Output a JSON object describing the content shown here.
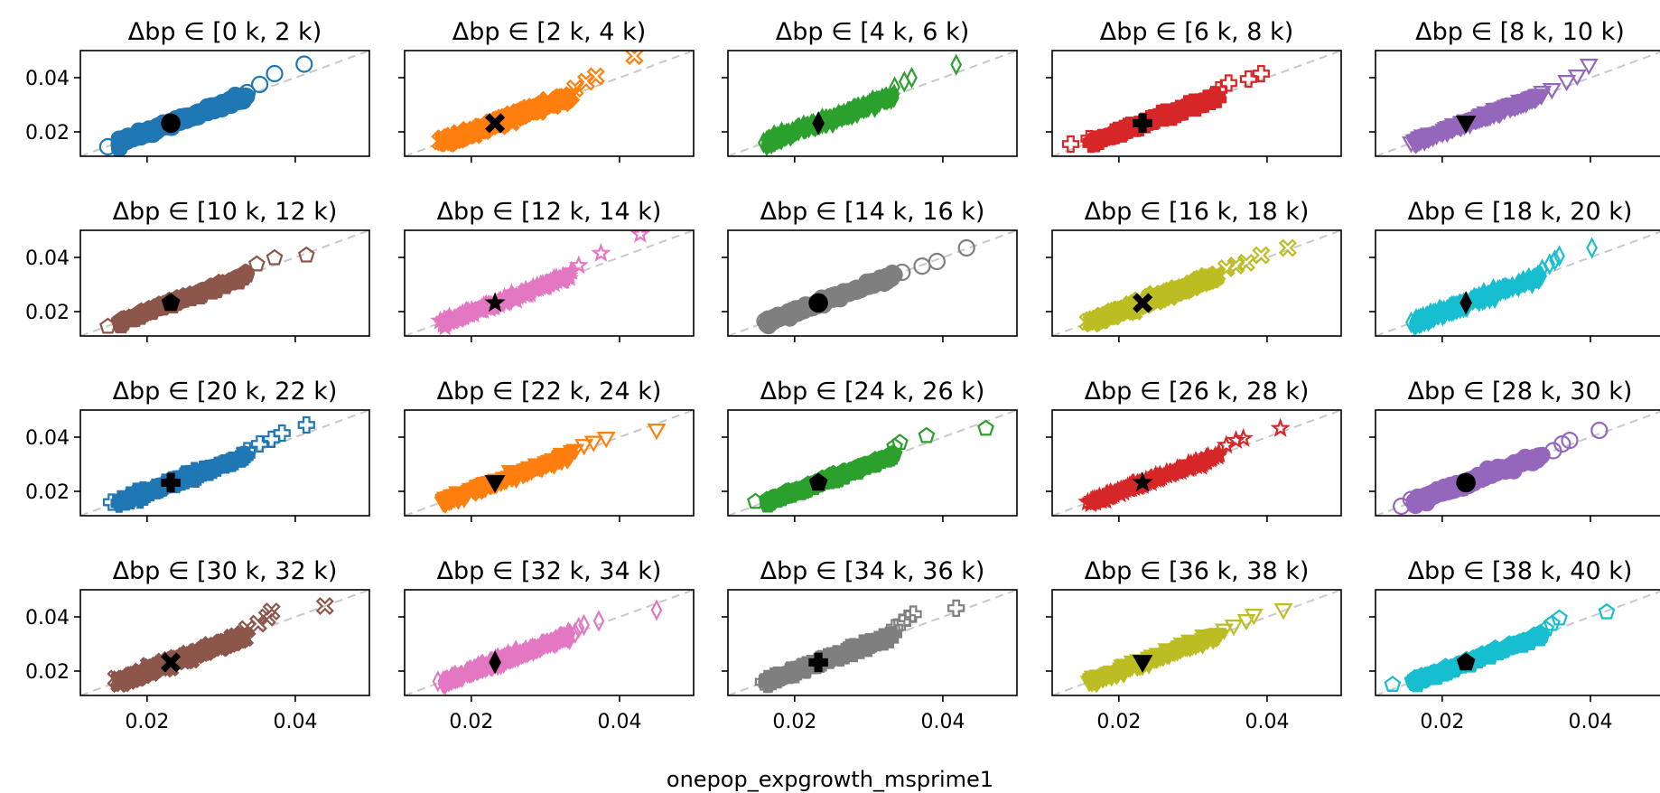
{
  "figure": {
    "xlabel": "onepop_expgrowth_msprime1"
  },
  "chart_data": {
    "type": "scatter",
    "layout": {
      "rows": 4,
      "cols": 5
    },
    "xlim": [
      0.011,
      0.05
    ],
    "ylim": [
      0.011,
      0.05
    ],
    "xticks": [
      0.02,
      0.04
    ],
    "yticks": [
      0.02,
      0.04
    ],
    "tick_labels": [
      "0.02",
      "0.04"
    ],
    "reference_line": {
      "style": "dashed",
      "color": "#c8c8c8",
      "slope": 1
    },
    "highlight_point": {
      "x": 0.0232,
      "y": 0.0232,
      "color": "#000000"
    },
    "panels": [
      {
        "title": "Δbp ∈ [0 k, 2 k)",
        "color": "#1f77b4",
        "marker": "circle",
        "outliers": [
          [
            0.0147,
            0.0145
          ],
          [
            0.0335,
            0.0345
          ],
          [
            0.0352,
            0.0375
          ],
          [
            0.0372,
            0.0415
          ],
          [
            0.0412,
            0.045
          ]
        ]
      },
      {
        "title": "Δbp ∈ [2 k, 4 k)",
        "color": "#ff7f0e",
        "marker": "x",
        "outliers": [
          [
            0.0158,
            0.0165
          ],
          [
            0.034,
            0.036
          ],
          [
            0.0355,
            0.0385
          ],
          [
            0.0368,
            0.0405
          ],
          [
            0.042,
            0.048
          ]
        ]
      },
      {
        "title": "Δbp ∈ [4 k, 6 k)",
        "color": "#2ca02c",
        "marker": "thin_diamond",
        "outliers": [
          [
            0.0158,
            0.016
          ],
          [
            0.0335,
            0.0365
          ],
          [
            0.0348,
            0.0385
          ],
          [
            0.0358,
            0.04
          ],
          [
            0.0418,
            0.0448
          ]
        ]
      },
      {
        "title": "Δbp ∈ [6 k, 8 k)",
        "color": "#d62728",
        "marker": "plus",
        "outliers": [
          [
            0.0135,
            0.0155
          ],
          [
            0.016,
            0.0175
          ],
          [
            0.0335,
            0.0355
          ],
          [
            0.0348,
            0.038
          ],
          [
            0.0375,
            0.0395
          ],
          [
            0.0392,
            0.0415
          ]
        ]
      },
      {
        "title": "Δbp ∈ [8 k, 10 k)",
        "color": "#9467bd",
        "marker": "triangle_down",
        "outliers": [
          [
            0.0158,
            0.0158
          ],
          [
            0.0335,
            0.0345
          ],
          [
            0.0348,
            0.0355
          ],
          [
            0.0368,
            0.0385
          ],
          [
            0.0382,
            0.0405
          ],
          [
            0.0398,
            0.0445
          ]
        ]
      },
      {
        "title": "Δbp ∈ [10 k, 12 k)",
        "color": "#8c564b",
        "marker": "pentagon",
        "outliers": [
          [
            0.0147,
            0.0145
          ],
          [
            0.0332,
            0.0345
          ],
          [
            0.0348,
            0.0375
          ],
          [
            0.0372,
            0.0398
          ],
          [
            0.0415,
            0.0408
          ]
        ]
      },
      {
        "title": "Δbp ∈ [12 k, 14 k)",
        "color": "#e377c2",
        "marker": "star",
        "outliers": [
          [
            0.0158,
            0.0165
          ],
          [
            0.0335,
            0.035
          ],
          [
            0.0345,
            0.037
          ],
          [
            0.0375,
            0.0415
          ],
          [
            0.0428,
            0.0485
          ]
        ]
      },
      {
        "title": "Δbp ∈ [14 k, 16 k)",
        "color": "#7f7f7f",
        "marker": "circle",
        "outliers": [
          [
            0.016,
            0.0165
          ],
          [
            0.0325,
            0.033
          ],
          [
            0.0345,
            0.0345
          ],
          [
            0.0372,
            0.0368
          ],
          [
            0.0392,
            0.0385
          ],
          [
            0.0432,
            0.0435
          ]
        ]
      },
      {
        "title": "Δbp ∈ [16 k, 18 k)",
        "color": "#bcbd22",
        "marker": "x",
        "outliers": [
          [
            0.0158,
            0.0162
          ],
          [
            0.0345,
            0.036
          ],
          [
            0.0358,
            0.037
          ],
          [
            0.0372,
            0.038
          ],
          [
            0.0392,
            0.0408
          ],
          [
            0.0428,
            0.0435
          ]
        ]
      },
      {
        "title": "Δbp ∈ [18 k, 20 k)",
        "color": "#17becf",
        "marker": "thin_diamond",
        "outliers": [
          [
            0.0158,
            0.016
          ],
          [
            0.0335,
            0.0355
          ],
          [
            0.0345,
            0.0375
          ],
          [
            0.0352,
            0.039
          ],
          [
            0.0358,
            0.0405
          ],
          [
            0.0402,
            0.0435
          ]
        ]
      },
      {
        "title": "Δbp ∈ [20 k, 22 k)",
        "color": "#1f77b4",
        "marker": "plus",
        "outliers": [
          [
            0.0152,
            0.016
          ],
          [
            0.0335,
            0.035
          ],
          [
            0.0352,
            0.0375
          ],
          [
            0.0368,
            0.0392
          ],
          [
            0.0382,
            0.0415
          ],
          [
            0.0415,
            0.0445
          ]
        ]
      },
      {
        "title": "Δbp ∈ [22 k, 24 k)",
        "color": "#ff7f0e",
        "marker": "triangle_down",
        "outliers": [
          [
            0.0165,
            0.0152
          ],
          [
            0.034,
            0.035
          ],
          [
            0.0352,
            0.0368
          ],
          [
            0.0365,
            0.038
          ],
          [
            0.0382,
            0.0395
          ],
          [
            0.045,
            0.0425
          ]
        ]
      },
      {
        "title": "Δbp ∈ [24 k, 26 k)",
        "color": "#2ca02c",
        "marker": "pentagon",
        "outliers": [
          [
            0.0147,
            0.0162
          ],
          [
            0.0335,
            0.0365
          ],
          [
            0.0342,
            0.038
          ],
          [
            0.0378,
            0.0405
          ],
          [
            0.0458,
            0.0432
          ]
        ]
      },
      {
        "title": "Δbp ∈ [26 k, 28 k)",
        "color": "#d62728",
        "marker": "star",
        "outliers": [
          [
            0.0158,
            0.016
          ],
          [
            0.0335,
            0.034
          ],
          [
            0.0345,
            0.037
          ],
          [
            0.0358,
            0.0388
          ],
          [
            0.0368,
            0.0395
          ],
          [
            0.0418,
            0.0432
          ]
        ]
      },
      {
        "title": "Δbp ∈ [28 k, 30 k)",
        "color": "#9467bd",
        "marker": "circle",
        "outliers": [
          [
            0.0145,
            0.0145
          ],
          [
            0.0158,
            0.017
          ],
          [
            0.033,
            0.033
          ],
          [
            0.035,
            0.035
          ],
          [
            0.0362,
            0.0375
          ],
          [
            0.0372,
            0.0388
          ],
          [
            0.0412,
            0.0425
          ]
        ]
      },
      {
        "title": "Δbp ∈ [30 k, 32 k)",
        "color": "#8c564b",
        "marker": "x",
        "outliers": [
          [
            0.0158,
            0.0172
          ],
          [
            0.0335,
            0.0355
          ],
          [
            0.035,
            0.0375
          ],
          [
            0.0362,
            0.0398
          ],
          [
            0.0368,
            0.042
          ],
          [
            0.044,
            0.044
          ]
        ]
      },
      {
        "title": "Δbp ∈ [32 k, 34 k)",
        "color": "#e377c2",
        "marker": "thin_diamond",
        "outliers": [
          [
            0.0155,
            0.0162
          ],
          [
            0.034,
            0.034
          ],
          [
            0.0345,
            0.036
          ],
          [
            0.0352,
            0.037
          ],
          [
            0.0372,
            0.0385
          ],
          [
            0.045,
            0.0425
          ]
        ]
      },
      {
        "title": "Δbp ∈ [34 k, 36 k)",
        "color": "#7f7f7f",
        "marker": "plus",
        "outliers": [
          [
            0.0158,
            0.016
          ],
          [
            0.0335,
            0.036
          ],
          [
            0.0345,
            0.038
          ],
          [
            0.0352,
            0.0395
          ],
          [
            0.036,
            0.041
          ],
          [
            0.0418,
            0.0432
          ]
        ]
      },
      {
        "title": "Δbp ∈ [36 k, 38 k)",
        "color": "#bcbd22",
        "marker": "triangle_down",
        "outliers": [
          [
            0.016,
            0.0158
          ],
          [
            0.0342,
            0.035
          ],
          [
            0.0355,
            0.0365
          ],
          [
            0.0372,
            0.0385
          ],
          [
            0.0382,
            0.0405
          ],
          [
            0.0422,
            0.0425
          ]
        ]
      },
      {
        "title": "Δbp ∈ [38 k, 40 k)",
        "color": "#17becf",
        "marker": "pentagon",
        "outliers": [
          [
            0.0133,
            0.015
          ],
          [
            0.016,
            0.0165
          ],
          [
            0.034,
            0.0355
          ],
          [
            0.0348,
            0.0375
          ],
          [
            0.0358,
            0.0395
          ],
          [
            0.0422,
            0.0418
          ]
        ]
      }
    ]
  }
}
